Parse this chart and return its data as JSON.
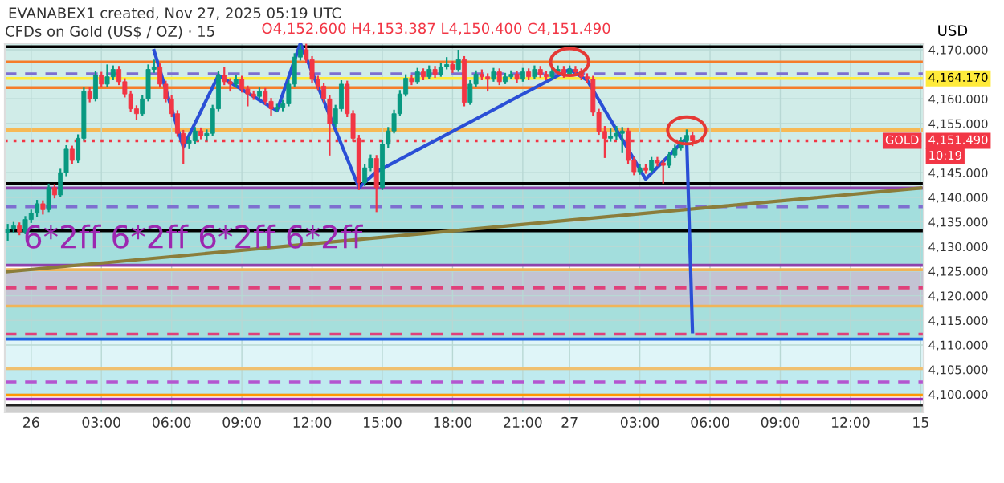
{
  "chart_data": {
    "type": "candlestick",
    "title": "CFDs on Gold (US$ / OZ) · 15",
    "ylabel": "USD",
    "annotations": [
      "EVANABEX1 created, Nov 27, 2025 05:19 UTC",
      "O4,152.600 H4,153.387 L4,150.400 C4,151.490",
      "6*2ff 6*2ff 6*2ff 6*2ff",
      "GOLD",
      "10:19"
    ],
    "categories": [
      null,
      null,
      null,
      null,
      "26",
      null,
      null,
      null,
      null,
      null,
      null,
      null,
      null,
      null,
      null,
      null,
      "03:00",
      null,
      null,
      null,
      null,
      null,
      null,
      null,
      null,
      null,
      null,
      null,
      "06:00",
      null,
      null,
      null,
      null,
      null,
      null,
      null,
      null,
      null,
      null,
      null,
      "09:00",
      null,
      null,
      null,
      null,
      null,
      null,
      null,
      null,
      null,
      null,
      null,
      "12:00",
      null,
      null,
      null,
      null,
      null,
      null,
      null,
      null,
      null,
      null,
      null,
      "15:00",
      null,
      null,
      null,
      null,
      null,
      null,
      null,
      null,
      null,
      null,
      null,
      "18:00",
      null,
      null,
      null,
      null,
      null,
      null,
      null,
      null,
      null,
      null,
      null,
      "21:00",
      null,
      null,
      null,
      null,
      null,
      null,
      null,
      "27",
      null,
      null,
      null,
      null,
      null,
      null,
      null,
      null,
      null,
      null,
      null,
      "03:00",
      null,
      null,
      null,
      null,
      null,
      null,
      null,
      null,
      null,
      null,
      null,
      "06:00",
      null,
      null,
      null,
      null,
      null,
      null,
      null,
      null,
      null,
      null,
      null,
      "09:00",
      null,
      null,
      null,
      null,
      null,
      null,
      null,
      null,
      null,
      null,
      null,
      "12:00",
      null,
      null,
      null,
      null,
      null,
      null,
      null,
      null,
      null,
      null,
      null,
      "15"
    ],
    "ohlc": [
      [
        4132.8,
        4134.6,
        4131.2,
        4133.5
      ],
      [
        4133.5,
        4135.0,
        4132.8,
        4134.2
      ],
      [
        4134.2,
        4134.9,
        4132.3,
        4133.0
      ],
      [
        4133.0,
        4136.2,
        4132.5,
        4135.5
      ],
      [
        4135.5,
        4137.5,
        4134.8,
        4136.8
      ],
      [
        4136.8,
        4139.5,
        4136.0,
        4138.7
      ],
      [
        4138.7,
        4139.4,
        4136.5,
        4137.5
      ],
      [
        4137.5,
        4142.8,
        4137.0,
        4142.0
      ],
      [
        4142.0,
        4142.7,
        4139.8,
        4140.5
      ],
      [
        4140.5,
        4145.8,
        4140.0,
        4145.0
      ],
      [
        4145.0,
        4150.6,
        4144.3,
        4149.8
      ],
      [
        4149.8,
        4150.5,
        4146.8,
        4147.5
      ],
      [
        4147.5,
        4152.8,
        4147.0,
        4152.0
      ],
      [
        4152.0,
        4162.3,
        4151.5,
        4161.5
      ],
      [
        4161.5,
        4162.5,
        4159.3,
        4160.0
      ],
      [
        4160.0,
        4165.6,
        4159.5,
        4164.8
      ],
      [
        4164.8,
        4165.5,
        4162.3,
        4163.0
      ],
      [
        4163.0,
        4167.0,
        4162.5,
        4164.5
      ],
      [
        4164.5,
        4166.8,
        4163.8,
        4166.0
      ],
      [
        4166.0,
        4166.7,
        4162.8,
        4163.5
      ],
      [
        4163.5,
        4164.2,
        4160.3,
        4161.0
      ],
      [
        4161.0,
        4161.7,
        4157.3,
        4158.0
      ],
      [
        4158.0,
        4158.7,
        4155.8,
        4157.0
      ],
      [
        4157.0,
        4160.8,
        4156.5,
        4160.0
      ],
      [
        4160.0,
        4167.0,
        4159.5,
        4166.0
      ],
      [
        4166.0,
        4168.0,
        4165.3,
        4166.5
      ],
      [
        4166.5,
        4167.2,
        4162.3,
        4163.0
      ],
      [
        4163.0,
        4163.7,
        4159.3,
        4160.0
      ],
      [
        4160.0,
        4160.7,
        4156.3,
        4157.0
      ],
      [
        4157.0,
        4157.7,
        4152.3,
        4153.0
      ],
      [
        4153.0,
        4153.7,
        4146.8,
        4151.0
      ],
      [
        4151.0,
        4152.3,
        4149.8,
        4151.5
      ],
      [
        4151.5,
        4154.3,
        4150.8,
        4153.5
      ],
      [
        4153.5,
        4154.2,
        4151.8,
        4152.5
      ],
      [
        4152.5,
        4153.8,
        4151.5,
        4153.0
      ],
      [
        4153.0,
        4158.8,
        4152.5,
        4158.0
      ],
      [
        4158.0,
        4165.6,
        4157.5,
        4164.8
      ],
      [
        4164.8,
        4166.5,
        4162.8,
        4163.5
      ],
      [
        4163.5,
        4164.2,
        4161.5,
        4163.0
      ],
      [
        4163.0,
        4164.8,
        4162.3,
        4164.0
      ],
      [
        4164.0,
        4164.7,
        4161.3,
        4162.0
      ],
      [
        4162.0,
        4162.7,
        4158.5,
        4161.0
      ],
      [
        4161.0,
        4161.7,
        4159.8,
        4160.5
      ],
      [
        4160.5,
        4162.3,
        4159.8,
        4161.5
      ],
      [
        4161.5,
        4162.2,
        4158.8,
        4159.5
      ],
      [
        4159.5,
        4160.2,
        4156.5,
        4158.0
      ],
      [
        4158.0,
        4159.0,
        4157.3,
        4158.3
      ],
      [
        4158.3,
        4159.8,
        4157.5,
        4159.0
      ],
      [
        4159.0,
        4163.8,
        4158.5,
        4163.0
      ],
      [
        4163.0,
        4169.3,
        4162.5,
        4168.5
      ],
      [
        4168.5,
        4171.0,
        4167.8,
        4170.0
      ],
      [
        4170.0,
        4171.2,
        4167.3,
        4168.0
      ],
      [
        4168.0,
        4168.7,
        4163.3,
        4164.0
      ],
      [
        4164.0,
        4164.7,
        4161.8,
        4162.6
      ],
      [
        4162.6,
        4163.3,
        4159.3,
        4160.0
      ],
      [
        4160.0,
        4160.7,
        4148.5,
        4155.0
      ],
      [
        4155.0,
        4158.8,
        4154.3,
        4158.0
      ],
      [
        4158.0,
        4163.8,
        4157.5,
        4163.0
      ],
      [
        4163.0,
        4163.7,
        4156.3,
        4157.0
      ],
      [
        4157.0,
        4157.7,
        4151.3,
        4152.0
      ],
      [
        4152.0,
        4152.7,
        4141.5,
        4143.0
      ],
      [
        4143.0,
        4146.8,
        4142.3,
        4146.0
      ],
      [
        4146.0,
        4148.7,
        4145.3,
        4147.9
      ],
      [
        4147.9,
        4148.6,
        4137.0,
        4142.0
      ],
      [
        4142.0,
        4151.6,
        4141.5,
        4150.8
      ],
      [
        4150.8,
        4154.3,
        4150.1,
        4153.5
      ],
      [
        4153.5,
        4157.8,
        4153.0,
        4157.0
      ],
      [
        4157.0,
        4161.8,
        4156.5,
        4161.0
      ],
      [
        4161.0,
        4165.0,
        4160.5,
        4164.2
      ],
      [
        4164.2,
        4164.9,
        4162.8,
        4163.5
      ],
      [
        4163.5,
        4166.3,
        4163.0,
        4165.5
      ],
      [
        4165.5,
        4166.2,
        4163.8,
        4164.5
      ],
      [
        4164.5,
        4166.8,
        4164.0,
        4166.0
      ],
      [
        4166.0,
        4166.7,
        4164.3,
        4165.0
      ],
      [
        4165.0,
        4167.3,
        4164.5,
        4166.5
      ],
      [
        4166.5,
        4168.5,
        4166.0,
        4167.0
      ],
      [
        4167.0,
        4167.7,
        4165.3,
        4166.0
      ],
      [
        4166.0,
        4170.0,
        4165.5,
        4168.0
      ],
      [
        4168.0,
        4168.7,
        4158.5,
        4159.3
      ],
      [
        4159.3,
        4163.8,
        4158.8,
        4163.0
      ],
      [
        4163.0,
        4165.8,
        4162.5,
        4165.0
      ],
      [
        4165.0,
        4166.0,
        4163.8,
        4164.5
      ],
      [
        4164.5,
        4165.2,
        4161.5,
        4164.0
      ],
      [
        4164.0,
        4166.3,
        4163.5,
        4165.5
      ],
      [
        4165.5,
        4166.2,
        4162.8,
        4163.5
      ],
      [
        4163.5,
        4165.3,
        4163.0,
        4164.5
      ],
      [
        4164.5,
        4165.8,
        4164.0,
        4165.0
      ],
      [
        4165.0,
        4165.7,
        4163.3,
        4164.0
      ],
      [
        4164.0,
        4166.3,
        4163.5,
        4165.5
      ],
      [
        4165.5,
        4166.2,
        4163.8,
        4164.5
      ],
      [
        4164.5,
        4166.8,
        4164.0,
        4166.0
      ],
      [
        4166.0,
        4166.7,
        4164.3,
        4165.0
      ],
      [
        4165.0,
        4165.7,
        4163.8,
        4164.5
      ],
      [
        4164.5,
        4166.3,
        4164.0,
        4165.5
      ],
      [
        4165.5,
        4166.8,
        4165.0,
        4166.0
      ],
      [
        4166.0,
        4166.7,
        4164.3,
        4165.0
      ],
      [
        4165.0,
        4166.8,
        4164.5,
        4166.0
      ],
      [
        4166.0,
        4166.7,
        4164.8,
        4165.5
      ],
      [
        4165.5,
        4166.2,
        4163.8,
        4164.5
      ],
      [
        4164.5,
        4165.2,
        4163.3,
        4164.0
      ],
      [
        4164.0,
        4164.7,
        4156.5,
        4157.3
      ],
      [
        4157.3,
        4158.0,
        4152.7,
        4153.4
      ],
      [
        4153.4,
        4154.5,
        4148.0,
        4152.0
      ],
      [
        4152.0,
        4154.0,
        4151.3,
        4152.4
      ],
      [
        4152.4,
        4154.5,
        4151.7,
        4153.0
      ],
      [
        4153.0,
        4154.3,
        4149.0,
        4153.5
      ],
      [
        4153.5,
        4154.2,
        4146.8,
        4147.5
      ],
      [
        4147.5,
        4148.2,
        4144.5,
        4145.2
      ],
      [
        4145.2,
        4146.7,
        4144.6,
        4146.0
      ],
      [
        4146.0,
        4146.7,
        4144.8,
        4145.5
      ],
      [
        4145.5,
        4148.2,
        4145.0,
        4147.5
      ],
      [
        4147.5,
        4148.2,
        4146.3,
        4147.0
      ],
      [
        4147.0,
        4147.7,
        4142.8,
        4146.5
      ],
      [
        4146.5,
        4149.3,
        4146.0,
        4148.6
      ],
      [
        4148.6,
        4150.7,
        4148.0,
        4150.0
      ],
      [
        4150.0,
        4152.2,
        4149.5,
        4151.5
      ],
      [
        4151.5,
        4153.8,
        4150.8,
        4152.6
      ],
      [
        4152.6,
        4153.387,
        4150.4,
        4151.49
      ],
      null,
      null,
      null,
      null,
      null,
      null,
      null,
      null,
      null,
      null,
      null,
      null,
      null,
      null,
      null,
      null,
      null,
      null,
      null,
      null,
      null,
      null,
      null,
      null,
      null,
      null,
      null,
      null,
      null,
      null,
      null,
      null,
      null,
      null,
      null,
      null,
      null,
      null,
      null
    ],
    "colors": [
      "#089981",
      "#089981",
      "#f23645",
      "#089981",
      "#089981",
      "#089981",
      "#f23645",
      "#089981",
      "#f23645",
      "#089981",
      "#089981",
      "#f23645",
      "#089981",
      "#089981",
      "#f23645",
      "#089981",
      "#f23645",
      "#089981",
      "#089981",
      "#f23645",
      "#f23645",
      "#f23645",
      "#f23645",
      "#089981",
      "#089981",
      "#089981",
      "#f23645",
      "#f23645",
      "#f23645",
      "#f23645",
      "#f23645",
      "#089981",
      "#089981",
      "#f23645",
      "#089981",
      "#089981",
      "#089981",
      "#f23645",
      "#f23645",
      "#089981",
      "#f23645",
      "#f23645",
      "#f23645",
      "#089981",
      "#f23645",
      "#f23645",
      "#089981",
      "#089981",
      "#089981",
      "#089981",
      "#089981",
      "#f23645",
      "#f23645",
      "#f23645",
      "#f23645",
      "#f23645",
      "#089981",
      "#089981",
      "#f23645",
      "#f23645",
      "#f23645",
      "#089981",
      "#089981",
      "#f23645",
      "#089981",
      "#089981",
      "#089981",
      "#089981",
      "#089981",
      "#f23645",
      "#089981",
      "#f23645",
      "#089981",
      "#f23645",
      "#089981",
      "#089981",
      "#f23645",
      "#089981",
      "#f23645",
      "#089981",
      "#089981",
      "#f23645",
      "#f23645",
      "#089981",
      "#f23645",
      "#089981",
      "#089981",
      "#f23645",
      "#089981",
      "#f23645",
      "#089981",
      "#f23645",
      "#f23645",
      "#089981",
      "#089981",
      "#f23645",
      "#089981",
      "#f23645",
      "#f23645",
      "#f23645",
      "#f23645",
      "#f23645",
      "#f23645",
      "#089981",
      "#089981",
      "#089981",
      "#f23645",
      "#f23645",
      "#089981",
      "#f23645",
      "#089981",
      "#f23645",
      "#f23645",
      "#089981",
      "#089981",
      "#089981",
      "#089981",
      "#f23645",
      null,
      null,
      null,
      null,
      null,
      null,
      null,
      null,
      null,
      null,
      null,
      null,
      null,
      null,
      null,
      null,
      null,
      null,
      null,
      null,
      null,
      null,
      null,
      null,
      null,
      null,
      null,
      null,
      null,
      null,
      null,
      null,
      null,
      null,
      null,
      null,
      null,
      null,
      null
    ],
    "series": [
      {
        "type": "line",
        "color": "#8b7d3a",
        "values": [
          4124.9,
          null,
          null,
          null,
          null,
          null,
          null,
          null,
          null,
          null,
          null,
          null,
          null,
          null,
          null,
          null,
          null,
          null,
          null,
          null,
          null,
          null,
          null,
          null,
          null,
          null,
          null,
          null,
          null,
          null,
          null,
          null,
          null,
          null,
          null,
          null,
          null,
          null,
          null,
          null,
          null,
          null,
          null,
          null,
          null,
          null,
          null,
          null,
          null,
          null,
          null,
          null,
          null,
          null,
          null,
          null,
          null,
          null,
          null,
          null,
          null,
          null,
          null,
          null,
          null,
          null,
          null,
          null,
          null,
          null,
          null,
          null,
          null,
          null,
          null,
          null,
          null,
          null,
          null,
          null,
          null,
          null,
          null,
          null,
          null,
          null,
          null,
          null,
          null,
          null,
          null,
          null,
          null,
          null,
          null,
          null,
          null,
          null,
          null,
          null,
          null,
          null,
          null,
          null,
          null,
          null,
          null,
          null,
          null,
          null,
          null,
          null,
          null,
          null,
          null,
          null,
          null,
          null,
          null,
          null,
          null,
          null,
          null,
          null,
          null,
          null,
          null,
          null,
          null,
          null,
          null,
          null,
          null,
          null,
          null,
          null,
          null,
          null,
          null,
          null,
          null,
          null,
          null,
          null,
          null,
          null,
          null,
          null,
          null,
          null,
          null,
          null,
          null,
          null,
          null,
          null,
          4141.9
        ]
      },
      {
        "type": "line",
        "color": "#2a4fd6",
        "values": [
          null,
          null,
          null,
          null,
          null,
          null,
          null,
          null,
          null,
          null,
          null,
          null,
          null,
          null,
          null,
          null,
          null,
          null,
          null,
          null,
          null,
          null,
          null,
          null,
          null,
          4169.8,
          null,
          null,
          null,
          null,
          4150.2,
          null,
          null,
          null,
          null,
          null,
          4164.8,
          null,
          null,
          null,
          null,
          null,
          null,
          null,
          null,
          null,
          4157.6,
          null,
          null,
          null,
          4171.3,
          null,
          null,
          null,
          null,
          null,
          null,
          null,
          null,
          null,
          4142.0,
          null,
          null,
          4145.2,
          null,
          null,
          null,
          null,
          null,
          null,
          null,
          null,
          null,
          null,
          null,
          null,
          null,
          null,
          null,
          null,
          null,
          null,
          null,
          null,
          null,
          null,
          null,
          null,
          null,
          null,
          null,
          null,
          null,
          null,
          null,
          null,
          4166.0,
          null,
          null,
          4163.8,
          null,
          null,
          null,
          null,
          null,
          null,
          null,
          null,
          null,
          4143.7,
          null,
          null,
          null,
          null,
          null,
          null,
          4152.1,
          4112.7,
          null,
          null,
          null,
          null,
          null,
          null,
          null,
          null,
          null,
          null,
          null,
          null,
          null,
          null,
          null,
          null,
          null,
          null,
          null,
          null,
          null,
          null,
          null,
          null,
          null,
          null,
          null,
          null,
          null,
          null,
          null,
          null,
          null,
          null,
          null,
          null,
          null,
          null,
          null
        ]
      }
    ],
    "ylim": [
      4096.3,
      4171.3
    ],
    "yticks": [
      {
        "value": 4100,
        "label": "4,100.000"
      },
      {
        "value": 4105,
        "label": "4,105.000"
      },
      {
        "value": 4110,
        "label": "4,110.000"
      },
      {
        "value": 4115,
        "label": "4,115.000"
      },
      {
        "value": 4120,
        "label": "4,120.000"
      },
      {
        "value": 4125,
        "label": "4,125.000"
      },
      {
        "value": 4130,
        "label": "4,130.000"
      },
      {
        "value": 4135,
        "label": "4,135.000"
      },
      {
        "value": 4140,
        "label": "4,140.000"
      },
      {
        "value": 4145,
        "label": "4,145.000"
      },
      {
        "value": 4155,
        "label": "4,155.000"
      },
      {
        "value": 4160,
        "label": "4,160.000"
      },
      {
        "value": 4170,
        "label": "4,170.000"
      }
    ],
    "bands": [
      {
        "axis": "y",
        "from": 4142.0,
        "to": 4171.3,
        "color": "#d0ece8"
      },
      {
        "axis": "y",
        "from": 4126.2,
        "to": 4142.0,
        "color": "#a3dedd"
      },
      {
        "axis": "y",
        "from": 4117.9,
        "to": 4125.3,
        "color": "#c3c3d3"
      },
      {
        "axis": "y",
        "from": 4111.2,
        "to": 4117.9,
        "color": "#a6dfdc"
      },
      {
        "axis": "y",
        "from": 4105.2,
        "to": 4111.2,
        "color": "#dff5f8"
      },
      {
        "axis": "y",
        "from": 4099.8,
        "to": 4105.2,
        "color": "#bfeaef"
      },
      {
        "axis": "y",
        "from": 4096.3,
        "to": 4097.8,
        "color": "#cfcfcf"
      },
      {
        "axis": "y",
        "from": 4153.2,
        "to": 4154.1,
        "color": "#f7b955"
      }
    ],
    "ref_lines": [
      {
        "axis": "y",
        "value": 4170.6,
        "color": "#000000",
        "line_style": "solid"
      },
      {
        "axis": "y",
        "value": 4167.5,
        "color": "#f57c2a",
        "line_style": "solid"
      },
      {
        "axis": "y",
        "value": 4165.1,
        "color": "#7e6fd0",
        "line_style": "dashed"
      },
      {
        "axis": "y",
        "value": 4164.17,
        "label": "4,164.170",
        "color": "#ffeb3b",
        "line_style": "solid"
      },
      {
        "axis": "y",
        "value": 4162.3,
        "color": "#f57c2a",
        "line_style": "solid"
      },
      {
        "axis": "y",
        "value": 4151.49,
        "label": "4,151.490",
        "color": "#f23645",
        "line_style": "dotted"
      },
      {
        "axis": "y",
        "value": 4142.8,
        "color": "#000000",
        "line_style": "solid"
      },
      {
        "axis": "y",
        "value": 4141.9,
        "color": "#8e44ad",
        "line_style": "solid"
      },
      {
        "axis": "y",
        "value": 4138.1,
        "color": "#7e6fd0",
        "line_style": "dashed"
      },
      {
        "axis": "y",
        "value": 4133.2,
        "color": "#000000",
        "line_style": "solid"
      },
      {
        "axis": "y",
        "value": 4126.2,
        "color": "#8e44ad",
        "line_style": "solid"
      },
      {
        "axis": "y",
        "value": 4125.3,
        "color": "#f0b45a",
        "line_style": "solid"
      },
      {
        "axis": "y",
        "value": 4121.6,
        "color": "#e0407a",
        "line_style": "dashed"
      },
      {
        "axis": "y",
        "value": 4117.9,
        "color": "#f0b45a",
        "line_style": "solid"
      },
      {
        "axis": "y",
        "value": 4112.2,
        "color": "#e0407a",
        "line_style": "dashed"
      },
      {
        "axis": "y",
        "value": 4111.2,
        "color": "#1e63e0",
        "line_style": "solid"
      },
      {
        "axis": "y",
        "value": 4105.2,
        "color": "#f0c070",
        "line_style": "solid"
      },
      {
        "axis": "y",
        "value": 4102.5,
        "color": "#b455d0",
        "line_style": "dashed"
      },
      {
        "axis": "y",
        "value": 4099.8,
        "color": "#ff9800",
        "line_style": "solid"
      },
      {
        "axis": "y",
        "value": 4099.0,
        "color": "#9c27b0",
        "line_style": "solid"
      },
      {
        "axis": "y",
        "value": 4097.8,
        "color": "#222222",
        "line_style": "solid"
      }
    ],
    "grid": true,
    "legend": false
  }
}
